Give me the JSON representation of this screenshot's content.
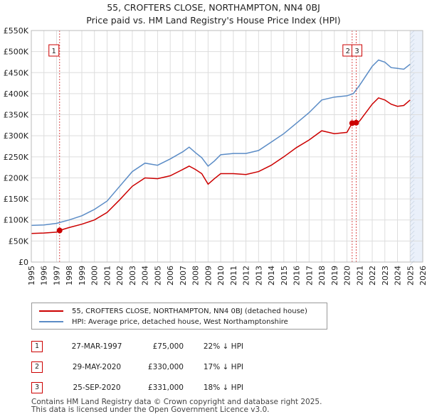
{
  "title_line1": "55, CROFTERS CLOSE, NORTHAMPTON, NN4 0BJ",
  "title_line2": "Price paid vs. HM Land Registry's House Price Index (HPI)",
  "legend": {
    "property_label": "55, CROFTERS CLOSE, NORTHAMPTON, NN4 0BJ (detached house)",
    "hpi_label": "HPI: Average price, detached house, West Northamptonshire"
  },
  "colors": {
    "property": "#cc0000",
    "hpi": "#5b8cc6",
    "grid": "#dddddd",
    "shade": "#eaf0fa"
  },
  "sales": [
    {
      "num": "1",
      "date": "27-MAR-1997",
      "price": "£75,000",
      "hpi": "22% ↓ HPI"
    },
    {
      "num": "2",
      "date": "29-MAY-2020",
      "price": "£330,000",
      "hpi": "17% ↓ HPI"
    },
    {
      "num": "3",
      "date": "25-SEP-2020",
      "price": "£331,000",
      "hpi": "18% ↓ HPI"
    }
  ],
  "footer_line1": "Contains HM Land Registry data © Crown copyright and database right 2025.",
  "footer_line2": "This data is licensed under the Open Government Licence v3.0.",
  "chart_data": {
    "type": "line",
    "title": "55, CROFTERS CLOSE, NORTHAMPTON, NN4 0BJ — Price paid vs. HM Land Registry's House Price Index (HPI)",
    "xlabel": "",
    "ylabel": "",
    "xlim": [
      1995,
      2026
    ],
    "ylim": [
      0,
      550000
    ],
    "x_ticks": [
      1995,
      1996,
      1997,
      1998,
      1999,
      2000,
      2001,
      2002,
      2003,
      2004,
      2005,
      2006,
      2007,
      2008,
      2009,
      2010,
      2011,
      2012,
      2013,
      2014,
      2015,
      2016,
      2017,
      2018,
      2019,
      2020,
      2021,
      2022,
      2023,
      2024,
      2025,
      2026
    ],
    "y_ticks": [
      {
        "value": 0,
        "label": "£0"
      },
      {
        "value": 50000,
        "label": "£50K"
      },
      {
        "value": 100000,
        "label": "£100K"
      },
      {
        "value": 150000,
        "label": "£150K"
      },
      {
        "value": 200000,
        "label": "£200K"
      },
      {
        "value": 250000,
        "label": "£250K"
      },
      {
        "value": 300000,
        "label": "£300K"
      },
      {
        "value": 350000,
        "label": "£350K"
      },
      {
        "value": 400000,
        "label": "£400K"
      },
      {
        "value": 450000,
        "label": "£450K"
      },
      {
        "value": 500000,
        "label": "£500K"
      },
      {
        "value": 550000,
        "label": "£550K"
      }
    ],
    "grid": true,
    "future_shading_from": 2025.0,
    "series": [
      {
        "name": "HPI: Average price, detached house, West Northamptonshire",
        "x": [
          1995.0,
          1996.0,
          1997.0,
          1998.0,
          1999.0,
          2000.0,
          2001.0,
          2002.0,
          2003.0,
          2004.0,
          2005.0,
          2006.0,
          2007.0,
          2007.5,
          2008.0,
          2008.5,
          2009.0,
          2009.5,
          2010.0,
          2011.0,
          2012.0,
          2013.0,
          2014.0,
          2015.0,
          2016.0,
          2017.0,
          2018.0,
          2019.0,
          2020.0,
          2020.5,
          2021.0,
          2022.0,
          2022.5,
          2023.0,
          2023.5,
          2024.0,
          2024.5,
          2025.0
        ],
        "values": [
          87000,
          88000,
          92000,
          100000,
          110000,
          125000,
          145000,
          180000,
          215000,
          235000,
          230000,
          245000,
          262000,
          273000,
          260000,
          248000,
          228000,
          240000,
          255000,
          258000,
          258000,
          265000,
          285000,
          305000,
          330000,
          355000,
          385000,
          392000,
          395000,
          400000,
          420000,
          465000,
          480000,
          475000,
          462000,
          460000,
          458000,
          470000
        ],
        "color": "#5b8cc6"
      },
      {
        "name": "55, CROFTERS CLOSE, NORTHAMPTON, NN4 0BJ (detached house)",
        "x": [
          1995.0,
          1996.0,
          1997.0,
          1997.24,
          1998.0,
          1999.0,
          2000.0,
          2001.0,
          2002.0,
          2003.0,
          2004.0,
          2005.0,
          2006.0,
          2007.0,
          2007.5,
          2008.0,
          2008.5,
          2009.0,
          2009.5,
          2010.0,
          2011.0,
          2012.0,
          2013.0,
          2014.0,
          2015.0,
          2016.0,
          2017.0,
          2018.0,
          2019.0,
          2020.0,
          2020.41,
          2020.73,
          2021.0,
          2022.0,
          2022.5,
          2023.0,
          2023.5,
          2024.0,
          2024.5,
          2025.0
        ],
        "values": [
          68000,
          69000,
          71000,
          75000,
          82000,
          90000,
          100000,
          118000,
          148000,
          180000,
          200000,
          198000,
          205000,
          220000,
          228000,
          220000,
          210000,
          185000,
          198000,
          210000,
          210000,
          208000,
          215000,
          230000,
          250000,
          272000,
          290000,
          312000,
          305000,
          308000,
          330000,
          331000,
          335000,
          375000,
          390000,
          385000,
          375000,
          370000,
          372000,
          385000
        ],
        "color": "#cc0000"
      }
    ],
    "sale_points": [
      {
        "num": "1",
        "x": 1997.24,
        "value": 75000
      },
      {
        "num": "2",
        "x": 2020.41,
        "value": 330000
      },
      {
        "num": "3",
        "x": 2020.73,
        "value": 331000
      }
    ]
  }
}
